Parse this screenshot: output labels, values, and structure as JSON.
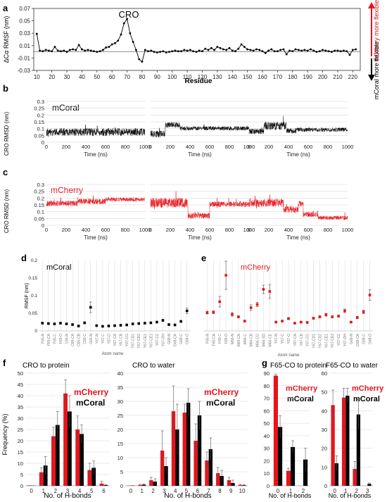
{
  "colors": {
    "mcherry": "#e8141b",
    "mcoral": "#000000",
    "grid": "#d6d6d6",
    "axis": "#333333"
  },
  "panel_labels": {
    "a": "a",
    "b": "b",
    "c": "c",
    "d": "d",
    "e": "e",
    "f": "f",
    "g": "g"
  },
  "panel_a": {
    "ylabel": "ΔCα RMSF (nm)",
    "xlabel": "Residue",
    "peak_label": "CRO",
    "side_up": "mCherry more flexible",
    "side_down": "mCoral more flexible",
    "yticks": [
      "0.07",
      "0.05",
      "0.03",
      "0.01",
      "-0.01",
      "-0.03"
    ],
    "xticks": [
      "10",
      "20",
      "30",
      "40",
      "50",
      "60",
      "70",
      "80",
      "90",
      "100",
      "110",
      "120",
      "130",
      "140",
      "150",
      "160",
      "170",
      "180",
      "190",
      "200",
      "210",
      "220"
    ]
  },
  "panel_b": {
    "title": "mCoral",
    "ylabel": "CRO RMSD (nm)",
    "xlabel": "Time (ns)",
    "yticks": [
      "0.3",
      "0.25",
      "0.2",
      "0.15",
      "0.1",
      "0.05",
      "0"
    ],
    "xticks": [
      "0",
      "200",
      "400",
      "600",
      "800",
      "1000"
    ]
  },
  "panel_c": {
    "title": "mCherry",
    "ylabel": "CRO RMSD (nm)",
    "xlabel": "Time (ns)",
    "yticks": [
      "0.3",
      "0.25",
      "0.2",
      "0.15",
      "0.1",
      "0.05",
      "0"
    ],
    "xticks": [
      "0",
      "200",
      "400",
      "600",
      "800",
      "1000"
    ]
  },
  "panel_d": {
    "title": "mCoral",
    "ylabel": "RMSF (nm)",
    "xlabel": "Atom name",
    "yticks": [
      "0.2",
      "0.15",
      "0.1",
      "0.05",
      "0"
    ]
  },
  "panel_e": {
    "title": "mCherry",
    "xlabel": "Atom name"
  },
  "panel_f": {
    "ylabel": "Frequency (%)",
    "xlabel": "No. of H-bonds",
    "legend_mcherry": "mCherry",
    "legend_mcoral": "mCoral",
    "left_title": "CRO to protein",
    "right_title": "CRO to water",
    "left_yticks": [
      "0",
      "5",
      "10",
      "15",
      "20",
      "25",
      "30",
      "35",
      "40",
      "45",
      "50"
    ],
    "right_yticks": [
      "0",
      "5",
      "10",
      "15",
      "20",
      "25",
      "30",
      "35",
      "40"
    ]
  },
  "panel_g": {
    "xlabel": "No. of H-bonds",
    "legend_mcherry": "mCherry",
    "legend_mcoral": "mCoral",
    "left_title": "F65-CO to protein",
    "right_title": "F65-CO to water",
    "left_yticks": [
      "0",
      "10",
      "20",
      "30",
      "40",
      "50",
      "60",
      "70",
      "80",
      "90"
    ],
    "right_yticks": [
      "0",
      "10",
      "20",
      "30",
      "40",
      "50",
      "60"
    ]
  },
  "chart_data": [
    {
      "id": "a",
      "type": "line",
      "xlabel": "Residue",
      "ylabel": "ΔCα RMSF (nm)",
      "xlim": [
        8,
        225
      ],
      "ylim": [
        -0.03,
        0.07
      ],
      "series": [
        {
          "x": [
            10,
            12,
            14,
            16,
            18,
            20,
            22,
            24,
            26,
            28,
            30,
            32,
            34,
            36,
            38,
            40,
            42,
            44,
            46,
            48,
            50,
            52,
            54,
            56,
            58,
            60,
            62,
            64,
            66,
            68,
            70,
            72,
            74,
            76,
            78,
            80,
            82,
            84,
            86,
            88,
            90,
            92,
            94,
            96,
            98,
            100,
            102,
            104,
            106,
            108,
            110,
            112,
            114,
            116,
            118,
            120,
            122,
            124,
            126,
            128,
            130,
            132,
            134,
            136,
            138,
            140,
            142,
            144,
            146,
            148,
            150,
            152,
            154,
            156,
            158,
            160,
            162,
            164,
            166,
            168,
            170,
            172,
            174,
            176,
            178,
            180,
            182,
            184,
            186,
            188,
            190,
            192,
            194,
            196,
            198,
            200,
            202,
            204,
            206,
            208,
            210,
            212,
            214,
            216,
            218,
            220,
            222
          ],
          "values": [
            0.029,
            0.002,
            0.001,
            0.003,
            0.002,
            0.001,
            0.008,
            0.002,
            0.001,
            0.002,
            0.0,
            0.003,
            0.004,
            0.003,
            0.011,
            0.004,
            0.002,
            0.003,
            0.002,
            0.001,
            0.0,
            0.001,
            0.003,
            0.007,
            0.008,
            0.012,
            0.014,
            0.018,
            0.028,
            0.046,
            0.053,
            0.03,
            0.016,
            0.003,
            -0.012,
            -0.016,
            0.003,
            0.001,
            0.002,
            0.0,
            -0.001,
            0.0,
            0.001,
            -0.001,
            0.0,
            0.001,
            0.002,
            0.001,
            0.001,
            0.003,
            0.002,
            0.003,
            0.001,
            0.0,
            0.002,
            0.001,
            0.005,
            0.003,
            0.006,
            0.003,
            0.008,
            0.006,
            0.004,
            0.003,
            0.006,
            0.002,
            0.001,
            0.005,
            0.012,
            0.008,
            0.004,
            0.003,
            0.002,
            0.004,
            0.003,
            0.001,
            -0.002,
            0.002,
            0.004,
            0.001,
            0.001,
            0.003,
            0.004,
            -0.004,
            0.002,
            0.001,
            0.004,
            0.003,
            0.002,
            0.003,
            0.002,
            0.004,
            0.002,
            0.0,
            0.001,
            0.003,
            0.002,
            0.001,
            0.0,
            0.002,
            0.002,
            0.001,
            0.002,
            0.001,
            -0.005,
            0.003,
            0.004
          ]
        }
      ]
    },
    {
      "id": "b",
      "type": "line",
      "title": "mCoral",
      "xlabel": "Time (ns)",
      "ylabel": "CRO RMSD (nm)",
      "xlim": [
        0,
        1000
      ],
      "ylim": [
        0,
        0.3
      ],
      "series": [
        {
          "name": "mCoral",
          "segments": [
            [
              0,
              1000,
              0.075,
              0.028
            ]
          ]
        },
        {
          "name": "mCoral",
          "segments": [
            [
              0,
              150,
              0.06,
              0.025
            ],
            [
              150,
              300,
              0.128,
              0.02
            ],
            [
              300,
              1000,
              0.102,
              0.015
            ]
          ]
        },
        {
          "name": "mCoral",
          "segments": [
            [
              0,
              150,
              0.08,
              0.02
            ],
            [
              150,
              380,
              0.12,
              0.03
            ],
            [
              380,
              480,
              0.085,
              0.02
            ],
            [
              480,
              1000,
              0.092,
              0.015
            ]
          ]
        }
      ]
    },
    {
      "id": "c",
      "type": "line",
      "title": "mCherry",
      "xlabel": "Time (ns)",
      "ylabel": "CRO RMSD (nm)",
      "xlim": [
        0,
        1000
      ],
      "ylim": [
        0,
        0.3
      ],
      "series": [
        {
          "name": "mCherry",
          "segments": [
            [
              0,
              320,
              0.16,
              0.02
            ],
            [
              320,
              600,
              0.175,
              0.02
            ],
            [
              600,
              1000,
              0.19,
              0.015
            ]
          ]
        },
        {
          "name": "mCherry",
          "segments": [
            [
              0,
              380,
              0.165,
              0.035
            ],
            [
              380,
              600,
              0.07,
              0.02
            ],
            [
              600,
              1000,
              0.155,
              0.02
            ]
          ]
        },
        {
          "name": "mCherry",
          "segments": [
            [
              0,
              350,
              0.165,
              0.03
            ],
            [
              350,
              500,
              0.115,
              0.025
            ],
            [
              500,
              550,
              0.16,
              0.02
            ],
            [
              550,
              700,
              0.08,
              0.02
            ],
            [
              700,
              1000,
              0.055,
              0.015
            ]
          ]
        }
      ]
    },
    {
      "id": "d",
      "type": "scatter",
      "title": "mCoral",
      "xlabel": "Atom name",
      "ylabel": "RMSF (nm)",
      "ylim": [
        0,
        0.2
      ],
      "categories": [
        "F65-N",
        "F65-CA",
        "F65-C",
        "F65-O",
        "C66-N",
        "C66-CA",
        "C66-CB",
        "C66-C",
        "G66-N",
        "Y67-N",
        "Y67-C",
        "Y67-O",
        "Y67-CA",
        "Y67-CB",
        "Y67-CG",
        "Y67-CD1",
        "Y67-CD2",
        "Y67-CE1",
        "Y67-CE2",
        "Y67-CZ",
        "Y67-OH",
        "G68-N",
        "G68-CA",
        "G68-C",
        "G68-O"
      ],
      "values": [
        0.022,
        0.021,
        0.02,
        0.022,
        0.02,
        0.018,
        0.014,
        0.023,
        0.067,
        0.015,
        0.013,
        0.014,
        0.015,
        0.016,
        0.017,
        0.02,
        0.021,
        0.022,
        0.023,
        0.025,
        0.03,
        0.018,
        0.017,
        0.027,
        0.057
      ],
      "errors": [
        0,
        0,
        0,
        0,
        0,
        0,
        0,
        0,
        0.015,
        0,
        0,
        0,
        0,
        0,
        0,
        0,
        0,
        0,
        0,
        0,
        0,
        0,
        0,
        0,
        0.008
      ]
    },
    {
      "id": "e",
      "type": "scatter",
      "title": "mCherry",
      "xlabel": "Atom name",
      "ylim": [
        0,
        0.2
      ],
      "categories": [
        "F65-N",
        "F65-CA",
        "F65-C",
        "F65-O",
        "M66-N",
        "M66-CA",
        "M66-C",
        "M66-CB",
        "M66-CG",
        "M66-SD",
        "M66-CE",
        "Y67-N",
        "Y67-C",
        "Y67-O",
        "Y67-CA",
        "Y67-CB",
        "Y67-CG",
        "Y67-CD1",
        "Y67-CD2",
        "Y67-CE1",
        "Y67-CE2",
        "Y67-CZ",
        "Y67-OH",
        "G68-N",
        "G68-CA",
        "G68-C",
        "G68-O"
      ],
      "values": [
        0.052,
        0.053,
        0.083,
        0.158,
        0.047,
        0.04,
        0.028,
        0.066,
        0.075,
        0.118,
        0.112,
        0.025,
        0.028,
        0.035,
        0.022,
        0.025,
        0.024,
        0.036,
        0.04,
        0.046,
        0.04,
        0.042,
        0.057,
        0.025,
        0.038,
        0.054,
        0.102
      ],
      "errors": [
        0.004,
        0.004,
        0.015,
        0.04,
        0.005,
        0.003,
        0.002,
        0.008,
        0.006,
        0.012,
        0.02,
        0.002,
        0.002,
        0.003,
        0.002,
        0.002,
        0.002,
        0.003,
        0.003,
        0.004,
        0.003,
        0.003,
        0.005,
        0.002,
        0.003,
        0.005,
        0.015
      ]
    },
    {
      "id": "f-left",
      "type": "bar",
      "title": "CRO to protein",
      "xlabel": "No. of H-bonds",
      "ylabel": "Frequency (%)",
      "ylim": [
        0,
        50
      ],
      "categories": [
        "0",
        "1",
        "2",
        "3",
        "4",
        "5",
        "6"
      ],
      "series": [
        {
          "name": "mCherry",
          "values": [
            0.2,
            6,
            22,
            41,
            25,
            7,
            1
          ],
          "errors": [
            0,
            2,
            4,
            6,
            6,
            3,
            1
          ]
        },
        {
          "name": "mCoral",
          "values": [
            0.1,
            9,
            27,
            33,
            23,
            8,
            0.3
          ],
          "errors": [
            0,
            4,
            6,
            7,
            4,
            3,
            0.3
          ]
        }
      ]
    },
    {
      "id": "f-right",
      "type": "bar",
      "title": "CRO to water",
      "xlabel": "No. of H-bonds",
      "ylim": [
        0,
        40
      ],
      "categories": [
        "0",
        "1",
        "2",
        "3",
        "4",
        "5",
        "6",
        "7",
        "8",
        "9",
        "10"
      ],
      "series": [
        {
          "name": "mCherry",
          "values": [
            0.1,
            0.3,
            2,
            12.5,
            26.5,
            26,
            16,
            9,
            4.5,
            2,
            0.3
          ],
          "errors": [
            0,
            0.2,
            1,
            7,
            9,
            3,
            6,
            3,
            2,
            1,
            0.2
          ]
        },
        {
          "name": "mCoral",
          "values": [
            0.1,
            0.4,
            1.5,
            7,
            20,
            29.5,
            25,
            13,
            3.5,
            1,
            0.2
          ],
          "errors": [
            0,
            0.3,
            1,
            3,
            9,
            5,
            5,
            4,
            2,
            1,
            0.2
          ]
        }
      ]
    },
    {
      "id": "g-left",
      "type": "bar",
      "title": "F65-CO to protein",
      "xlabel": "No. of H-bonds",
      "ylim": [
        0,
        90
      ],
      "categories": [
        "0",
        "1",
        "2"
      ],
      "series": [
        {
          "name": "mCherry",
          "values": [
            88,
            12,
            0
          ],
          "errors": [
            1,
            2,
            0
          ]
        },
        {
          "name": "mCoral",
          "values": [
            47,
            31,
            21
          ],
          "errors": [
            9,
            5,
            9
          ]
        }
      ]
    },
    {
      "id": "g-right",
      "type": "bar",
      "title": "F65-CO to water",
      "xlabel": "No. of H-bonds",
      "ylim": [
        0,
        60
      ],
      "categories": [
        "0",
        "1",
        "2",
        "3"
      ],
      "series": [
        {
          "name": "mCherry",
          "values": [
            43,
            47,
            9,
            0
          ],
          "errors": [
            8,
            5,
            4,
            0
          ]
        },
        {
          "name": "mCoral",
          "values": [
            12,
            48,
            38,
            1
          ],
          "errors": [
            4,
            4,
            8,
            0.5
          ]
        }
      ]
    }
  ]
}
